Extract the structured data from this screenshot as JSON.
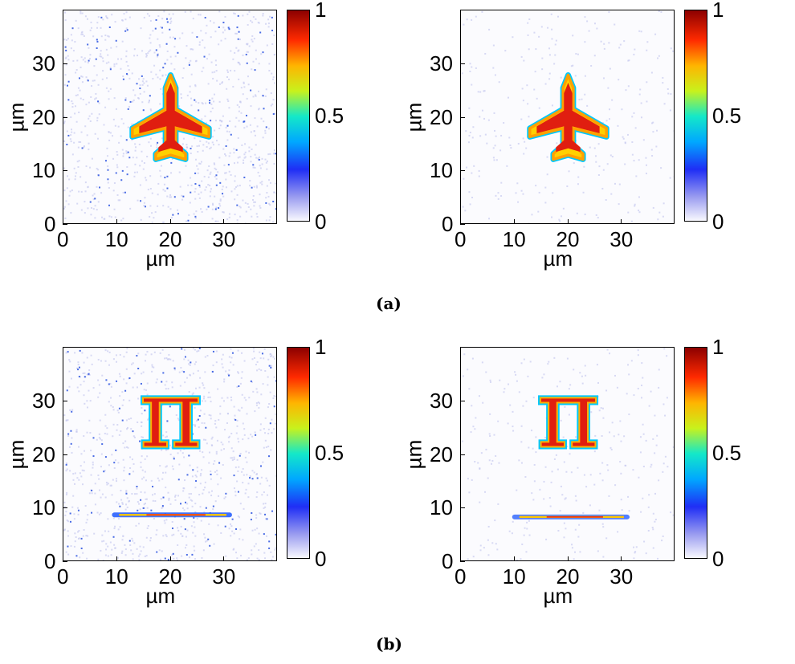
{
  "chart_data": [
    {
      "type": "heatmap",
      "subfigure": "a",
      "image_content": "airplane",
      "noise_level": "high",
      "xlabel": "µm",
      "ylabel": "µm",
      "xlim": [
        0,
        40
      ],
      "ylim": [
        0,
        40
      ],
      "xticks": [
        "0",
        "10",
        "20",
        "30"
      ],
      "yticks": [
        "0",
        "10",
        "20",
        "30"
      ],
      "colorbar": {
        "min": 0,
        "max": 1,
        "ticks": [
          "0",
          "0.5",
          "1"
        ],
        "colormap": "jet-white"
      }
    },
    {
      "type": "heatmap",
      "subfigure": "a",
      "image_content": "airplane",
      "noise_level": "low",
      "xlabel": "µm",
      "ylabel": "µm",
      "xlim": [
        0,
        40
      ],
      "ylim": [
        0,
        40
      ],
      "xticks": [
        "0",
        "10",
        "20",
        "30"
      ],
      "yticks": [
        "0",
        "10",
        "20",
        "30"
      ],
      "colorbar": {
        "min": 0,
        "max": 1,
        "ticks": [
          "0",
          "0.5",
          "1"
        ],
        "colormap": "jet-white"
      }
    },
    {
      "type": "heatmap",
      "subfigure": "b",
      "image_content": "pi symbol and line",
      "noise_level": "high",
      "xlabel": "µm",
      "ylabel": "µm",
      "xlim": [
        0,
        40
      ],
      "ylim": [
        0,
        40
      ],
      "xticks": [
        "0",
        "10",
        "20",
        "30"
      ],
      "yticks": [
        "0",
        "10",
        "20",
        "30"
      ],
      "colorbar": {
        "min": 0,
        "max": 1,
        "ticks": [
          "0",
          "0.5",
          "1"
        ],
        "colormap": "jet-white"
      }
    },
    {
      "type": "heatmap",
      "subfigure": "b",
      "image_content": "pi symbol and line",
      "noise_level": "low",
      "xlabel": "µm",
      "ylabel": "µm",
      "xlim": [
        0,
        40
      ],
      "ylim": [
        0,
        40
      ],
      "xticks": [
        "0",
        "10",
        "20",
        "30"
      ],
      "yticks": [
        "0",
        "10",
        "20",
        "30"
      ],
      "colorbar": {
        "min": 0,
        "max": 1,
        "ticks": [
          "0",
          "0.5",
          "1"
        ],
        "colormap": "jet-white"
      }
    }
  ],
  "captions": {
    "a": "(a)",
    "b": "(b)"
  },
  "pi_glyph": "π",
  "colors": {
    "background": "#fbfbfe",
    "noise": "#2a52e0",
    "edge": "#00b4ff",
    "core": "#e81a10"
  }
}
